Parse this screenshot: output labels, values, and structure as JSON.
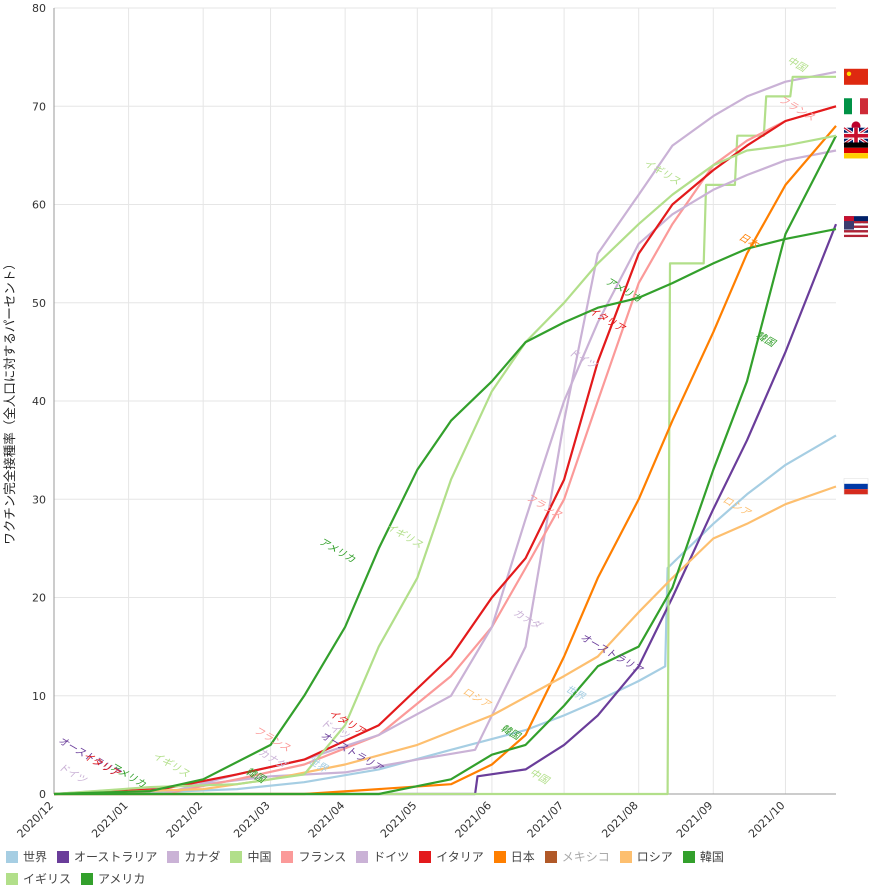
{
  "chart_data": {
    "type": "line",
    "ylabel": "ワクチン完全接種率（全人口に対するパーセント）",
    "ylim": [
      0,
      80
    ],
    "yticks": [
      "0",
      "10",
      "20",
      "30",
      "40",
      "50",
      "60",
      "70",
      "80"
    ],
    "xlim": [
      "2020-12-01",
      "2021-10-22"
    ],
    "xticks": [
      {
        "date": "2020-12-01",
        "label": "2020/12"
      },
      {
        "date": "2021-01-01",
        "label": "2021/01"
      },
      {
        "date": "2021-02-01",
        "label": "2021/02"
      },
      {
        "date": "2021-03-01",
        "label": "2021/03"
      },
      {
        "date": "2021-04-01",
        "label": "2021/04"
      },
      {
        "date": "2021-05-01",
        "label": "2021/05"
      },
      {
        "date": "2021-06-01",
        "label": "2021/06"
      },
      {
        "date": "2021-07-01",
        "label": "2021/07"
      },
      {
        "date": "2021-08-01",
        "label": "2021/08"
      },
      {
        "date": "2021-09-01",
        "label": "2021/09"
      },
      {
        "date": "2021-10-01",
        "label": "2021/10"
      }
    ],
    "grid": true,
    "legend_position": "bottom",
    "series": [
      {
        "name": "世界",
        "color": "#a6cee3",
        "flag": "united-nations",
        "points": [
          [
            "2020-12-01",
            0
          ],
          [
            "2021-01-15",
            0.2
          ],
          [
            "2021-02-15",
            0.5
          ],
          [
            "2021-03-15",
            1.2
          ],
          [
            "2021-04-15",
            2.5
          ],
          [
            "2021-05-15",
            4.5
          ],
          [
            "2021-06-15",
            6.5
          ],
          [
            "2021-07-01",
            8
          ],
          [
            "2021-07-15",
            9.5
          ],
          [
            "2021-08-01",
            11.5
          ],
          [
            "2021-08-12",
            13
          ],
          [
            "2021-08-13",
            23
          ],
          [
            "2021-09-01",
            27.5
          ],
          [
            "2021-09-15",
            30.5
          ],
          [
            "2021-10-01",
            33.5
          ],
          [
            "2021-10-22",
            36.5
          ]
        ]
      },
      {
        "name": "オーストラリア",
        "color": "#6a3d9a",
        "flag": "australia",
        "points": [
          [
            "2020-12-01",
            0
          ],
          [
            "2021-05-25",
            0
          ],
          [
            "2021-05-26",
            1.8
          ],
          [
            "2021-06-15",
            2.5
          ],
          [
            "2021-07-01",
            5
          ],
          [
            "2021-07-15",
            8
          ],
          [
            "2021-08-01",
            13
          ],
          [
            "2021-08-15",
            20
          ],
          [
            "2021-09-01",
            29
          ],
          [
            "2021-09-15",
            36
          ],
          [
            "2021-10-01",
            45
          ],
          [
            "2021-10-22",
            58
          ]
        ]
      },
      {
        "name": "カナダ",
        "color": "#cab2d6",
        "flag": "canada",
        "points": [
          [
            "2020-12-01",
            0
          ],
          [
            "2021-02-01",
            1
          ],
          [
            "2021-03-01",
            1.8
          ],
          [
            "2021-04-01",
            2.2
          ],
          [
            "2021-05-01",
            3.5
          ],
          [
            "2021-05-25",
            4.5
          ],
          [
            "2021-06-15",
            15
          ],
          [
            "2021-07-01",
            38
          ],
          [
            "2021-07-15",
            55
          ],
          [
            "2021-08-01",
            61
          ],
          [
            "2021-08-15",
            66
          ],
          [
            "2021-09-01",
            69
          ],
          [
            "2021-09-15",
            71
          ],
          [
            "2021-10-01",
            72.5
          ],
          [
            "2021-10-22",
            73.5
          ]
        ]
      },
      {
        "name": "中国",
        "color": "#b2df8a",
        "flag": "china",
        "points": [
          [
            "2020-12-01",
            0
          ],
          [
            "2021-08-13",
            0
          ],
          [
            "2021-08-14",
            54
          ],
          [
            "2021-08-28",
            54
          ],
          [
            "2021-08-29",
            62
          ],
          [
            "2021-09-10",
            62
          ],
          [
            "2021-09-11",
            67
          ],
          [
            "2021-09-22",
            67
          ],
          [
            "2021-09-23",
            71
          ],
          [
            "2021-10-03",
            71
          ],
          [
            "2021-10-04",
            73
          ],
          [
            "2021-10-22",
            73
          ]
        ]
      },
      {
        "name": "フランス",
        "color": "#fb9a99",
        "flag": "france",
        "points": [
          [
            "2020-12-01",
            0
          ],
          [
            "2021-01-15",
            0
          ],
          [
            "2021-02-15",
            1.5
          ],
          [
            "2021-03-15",
            3
          ],
          [
            "2021-04-15",
            6
          ],
          [
            "2021-05-15",
            12
          ],
          [
            "2021-06-01",
            17
          ],
          [
            "2021-06-15",
            23
          ],
          [
            "2021-07-01",
            30
          ],
          [
            "2021-07-15",
            40
          ],
          [
            "2021-08-01",
            52
          ],
          [
            "2021-08-15",
            58
          ],
          [
            "2021-09-01",
            64
          ],
          [
            "2021-09-15",
            66.5
          ],
          [
            "2021-10-01",
            68.5
          ],
          [
            "2021-10-22",
            70
          ]
        ]
      },
      {
        "name": "ドイツ",
        "color": "#cab2d6",
        "flag": "germany",
        "points": [
          [
            "2020-12-01",
            0
          ],
          [
            "2021-01-15",
            0
          ],
          [
            "2021-02-15",
            2
          ],
          [
            "2021-03-15",
            3.5
          ],
          [
            "2021-04-15",
            6
          ],
          [
            "2021-05-15",
            10
          ],
          [
            "2021-06-01",
            17
          ],
          [
            "2021-06-15",
            28
          ],
          [
            "2021-07-01",
            40
          ],
          [
            "2021-07-15",
            48
          ],
          [
            "2021-08-01",
            56
          ],
          [
            "2021-08-15",
            59
          ],
          [
            "2021-09-01",
            61.5
          ],
          [
            "2021-09-15",
            63
          ],
          [
            "2021-10-01",
            64.5
          ],
          [
            "2021-10-22",
            65.5
          ]
        ]
      },
      {
        "name": "イタリア",
        "color": "#e31a1c",
        "flag": "italy",
        "points": [
          [
            "2020-12-01",
            0
          ],
          [
            "2021-01-15",
            0.5
          ],
          [
            "2021-02-15",
            2
          ],
          [
            "2021-03-15",
            3.5
          ],
          [
            "2021-04-15",
            7
          ],
          [
            "2021-05-15",
            14
          ],
          [
            "2021-06-01",
            20
          ],
          [
            "2021-06-15",
            24
          ],
          [
            "2021-07-01",
            32
          ],
          [
            "2021-07-15",
            44
          ],
          [
            "2021-08-01",
            55
          ],
          [
            "2021-08-15",
            60
          ],
          [
            "2021-09-01",
            63.5
          ],
          [
            "2021-09-15",
            66
          ],
          [
            "2021-10-01",
            68.5
          ],
          [
            "2021-10-22",
            70
          ]
        ]
      },
      {
        "name": "日本",
        "color": "#ff7f00",
        "flag": "japan",
        "points": [
          [
            "2020-12-01",
            0
          ],
          [
            "2021-03-15",
            0
          ],
          [
            "2021-04-15",
            0.5
          ],
          [
            "2021-05-15",
            1
          ],
          [
            "2021-06-01",
            3
          ],
          [
            "2021-06-15",
            6
          ],
          [
            "2021-07-01",
            14
          ],
          [
            "2021-07-15",
            22
          ],
          [
            "2021-08-01",
            30
          ],
          [
            "2021-08-15",
            38
          ],
          [
            "2021-09-01",
            47
          ],
          [
            "2021-09-15",
            55
          ],
          [
            "2021-10-01",
            62
          ],
          [
            "2021-10-22",
            68
          ]
        ]
      },
      {
        "name": "メキシコ",
        "color": "#b15928",
        "flag": "mexico",
        "points": []
      },
      {
        "name": "ロシア",
        "color": "#fdbf6f",
        "flag": "russia",
        "points": [
          [
            "2020-12-01",
            0
          ],
          [
            "2021-02-01",
            0.5
          ],
          [
            "2021-03-01",
            1.5
          ],
          [
            "2021-04-01",
            3
          ],
          [
            "2021-05-01",
            5
          ],
          [
            "2021-06-01",
            8
          ],
          [
            "2021-07-01",
            12
          ],
          [
            "2021-07-15",
            14
          ],
          [
            "2021-08-01",
            18.5
          ],
          [
            "2021-08-15",
            22
          ],
          [
            "2021-09-01",
            26
          ],
          [
            "2021-09-15",
            27.5
          ],
          [
            "2021-10-01",
            29.5
          ],
          [
            "2021-10-22",
            31.3
          ]
        ]
      },
      {
        "name": "韓国",
        "color": "#33a02c",
        "flag": "south-korea",
        "points": [
          [
            "2020-12-01",
            0
          ],
          [
            "2021-04-15",
            0
          ],
          [
            "2021-05-15",
            1.5
          ],
          [
            "2021-06-01",
            4
          ],
          [
            "2021-06-15",
            5
          ],
          [
            "2021-07-01",
            9
          ],
          [
            "2021-07-15",
            13
          ],
          [
            "2021-08-01",
            15
          ],
          [
            "2021-08-15",
            21
          ],
          [
            "2021-09-01",
            33
          ],
          [
            "2021-09-15",
            42
          ],
          [
            "2021-10-01",
            57
          ],
          [
            "2021-10-22",
            67
          ]
        ]
      },
      {
        "name": "イギリス",
        "color": "#b2df8a",
        "flag": "united-kingdom",
        "points": [
          [
            "2020-12-01",
            0
          ],
          [
            "2021-01-10",
            0.7
          ],
          [
            "2021-02-15",
            1
          ],
          [
            "2021-03-15",
            2
          ],
          [
            "2021-04-01",
            7
          ],
          [
            "2021-04-15",
            15
          ],
          [
            "2021-05-01",
            22
          ],
          [
            "2021-05-15",
            32
          ],
          [
            "2021-06-01",
            41
          ],
          [
            "2021-06-15",
            46
          ],
          [
            "2021-07-01",
            50
          ],
          [
            "2021-07-15",
            54
          ],
          [
            "2021-08-01",
            58
          ],
          [
            "2021-08-15",
            61
          ],
          [
            "2021-09-01",
            64
          ],
          [
            "2021-09-15",
            65.5
          ],
          [
            "2021-10-01",
            66
          ],
          [
            "2021-10-22",
            67
          ]
        ]
      },
      {
        "name": "アメリカ",
        "color": "#33a02c",
        "flag": "united-states",
        "points": [
          [
            "2020-12-01",
            0
          ],
          [
            "2021-01-10",
            0.3
          ],
          [
            "2021-02-01",
            1.5
          ],
          [
            "2021-03-01",
            5
          ],
          [
            "2021-03-15",
            10
          ],
          [
            "2021-04-01",
            17
          ],
          [
            "2021-04-15",
            25
          ],
          [
            "2021-05-01",
            33
          ],
          [
            "2021-05-15",
            38
          ],
          [
            "2021-06-01",
            42
          ],
          [
            "2021-06-15",
            46
          ],
          [
            "2021-07-01",
            48
          ],
          [
            "2021-07-15",
            49.5
          ],
          [
            "2021-08-01",
            50.5
          ],
          [
            "2021-08-15",
            52
          ],
          [
            "2021-09-01",
            54
          ],
          [
            "2021-09-15",
            55.5
          ],
          [
            "2021-10-01",
            56.5
          ],
          [
            "2021-10-22",
            57.5
          ]
        ]
      }
    ],
    "annotations": [
      {
        "text": "中国",
        "series": 3,
        "date": "2021-10-05",
        "value": 74
      },
      {
        "text": "フランス",
        "series": 4,
        "date": "2021-10-05",
        "value": 69.5
      },
      {
        "text": "イギリス",
        "series": 11,
        "date": "2021-08-10",
        "value": 63
      },
      {
        "text": "日本",
        "series": 7,
        "date": "2021-09-15",
        "value": 56
      },
      {
        "text": "アメリカ",
        "series": 12,
        "date": "2021-07-25",
        "value": 51
      },
      {
        "text": "イタリア",
        "series": 6,
        "date": "2021-07-18",
        "value": 48
      },
      {
        "text": "ドイツ",
        "series": 5,
        "date": "2021-07-08",
        "value": 44
      },
      {
        "text": "韓国",
        "series": 10,
        "date": "2021-09-22",
        "value": 46
      },
      {
        "text": "フランス",
        "series": 4,
        "date": "2021-06-22",
        "value": 29
      },
      {
        "text": "イギリス",
        "series": 11,
        "date": "2021-04-25",
        "value": 26
      },
      {
        "text": "アメリカ",
        "series": 12,
        "date": "2021-03-28",
        "value": 24.5
      },
      {
        "text": "カナダ",
        "series": 2,
        "date": "2021-06-15",
        "value": 17.5
      },
      {
        "text": "オーストラリア",
        "series": 1,
        "date": "2021-07-20",
        "value": 14
      },
      {
        "text": "ロシア",
        "series": 9,
        "date": "2021-09-10",
        "value": 29
      },
      {
        "text": "世界",
        "series": 0,
        "date": "2021-07-05",
        "value": 10
      },
      {
        "text": "ロシア",
        "series": 9,
        "date": "2021-05-25",
        "value": 9.5
      },
      {
        "text": "韓国",
        "series": 10,
        "date": "2021-06-08",
        "value": 6
      },
      {
        "text": "中国",
        "series": 3,
        "date": "2021-06-20",
        "value": 1.5
      },
      {
        "text": "イタリア",
        "series": 6,
        "date": "2021-04-01",
        "value": 7
      },
      {
        "text": "ドイツ",
        "series": 5,
        "date": "2021-03-27",
        "value": 6.3
      },
      {
        "text": "フランス",
        "series": 4,
        "date": "2021-03-01",
        "value": 5.3
      },
      {
        "text": "オーストラリア",
        "series": 1,
        "date": "2021-04-03",
        "value": 4
      },
      {
        "text": "カナダ",
        "series": 2,
        "date": "2021-03-01",
        "value": 3.3
      },
      {
        "text": "世界",
        "series": 0,
        "date": "2021-03-20",
        "value": 2.7
      },
      {
        "text": "イギリス",
        "series": 11,
        "date": "2021-01-18",
        "value": 2.7
      },
      {
        "text": "アメリカ",
        "series": 12,
        "date": "2020-12-31",
        "value": 1.6
      },
      {
        "text": "オーストラリア",
        "series": 1,
        "date": "2020-12-15",
        "value": 3.5
      },
      {
        "text": "イタリア",
        "series": 6,
        "date": "2020-12-20",
        "value": 2.7
      },
      {
        "text": "ドイツ",
        "series": 5,
        "date": "2020-12-08",
        "value": 1.8
      },
      {
        "text": "韓国",
        "series": 10,
        "date": "2021-02-22",
        "value": 1.6
      }
    ]
  }
}
